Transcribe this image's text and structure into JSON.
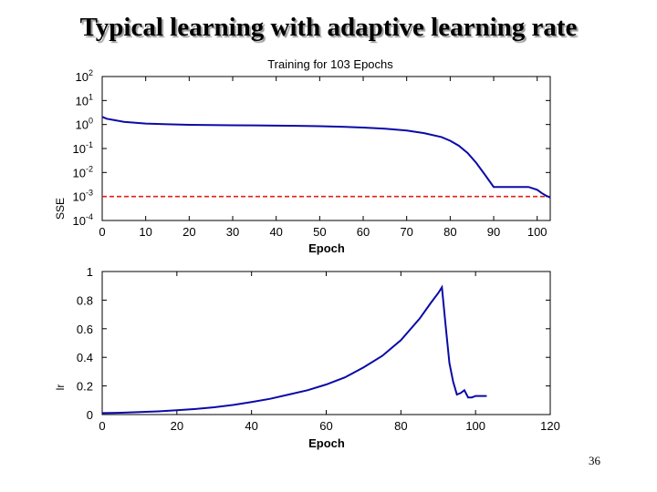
{
  "slide": {
    "title": "Typical learning with adaptive learning rate",
    "page_number": "36"
  },
  "chart_data": [
    {
      "type": "line",
      "title": "Training for 103 Epochs",
      "xlabel": "Epoch",
      "ylabel": "SSE",
      "yscale": "log",
      "xlim": [
        0,
        103
      ],
      "ylim": [
        0.0001,
        100
      ],
      "x_ticks": [
        0,
        10,
        20,
        30,
        40,
        50,
        60,
        70,
        80,
        90,
        100
      ],
      "y_ticks": [
        {
          "value": 100,
          "base": "10",
          "exp": "2"
        },
        {
          "value": 10,
          "base": "10",
          "exp": "1"
        },
        {
          "value": 1,
          "base": "10",
          "exp": "0"
        },
        {
          "value": 0.1,
          "base": "10",
          "exp": "-1"
        },
        {
          "value": 0.01,
          "base": "10",
          "exp": "-2"
        },
        {
          "value": 0.001,
          "base": "10",
          "exp": "-3"
        },
        {
          "value": 0.0001,
          "base": "10",
          "exp": "-4"
        }
      ],
      "series": [
        {
          "color": "#0a0aa8",
          "x": [
            0,
            1,
            3,
            5,
            10,
            15,
            20,
            25,
            30,
            35,
            40,
            45,
            50,
            55,
            60,
            65,
            70,
            74,
            78,
            80,
            82,
            84,
            86,
            88,
            90,
            92,
            94,
            96,
            98,
            100,
            101,
            102,
            103
          ],
          "y": [
            2.1,
            1.75,
            1.5,
            1.3,
            1.1,
            1.02,
            0.97,
            0.95,
            0.93,
            0.92,
            0.9,
            0.88,
            0.85,
            0.81,
            0.75,
            0.67,
            0.56,
            0.44,
            0.3,
            0.21,
            0.13,
            0.065,
            0.025,
            0.008,
            0.0025,
            0.0025,
            0.0025,
            0.0025,
            0.0025,
            0.0019,
            0.0014,
            0.0011,
            0.0009
          ]
        }
      ],
      "reference_lines": [
        {
          "y": 0.001,
          "color": "#e0201a",
          "style": "dashed"
        }
      ],
      "grid": false
    },
    {
      "type": "line",
      "xlabel": "Epoch",
      "ylabel": "lr",
      "xlim": [
        0,
        120
      ],
      "ylim": [
        0,
        1
      ],
      "x_ticks": [
        0,
        20,
        40,
        60,
        80,
        100,
        120
      ],
      "y_ticks": [
        {
          "value": 0,
          "label": "0"
        },
        {
          "value": 0.2,
          "label": "0.2"
        },
        {
          "value": 0.4,
          "label": "0.4"
        },
        {
          "value": 0.6,
          "label": "0.6"
        },
        {
          "value": 0.8,
          "label": "0.8"
        },
        {
          "value": 1,
          "label": "1"
        }
      ],
      "series": [
        {
          "color": "#0a0aa8",
          "x": [
            0,
            5,
            10,
            15,
            20,
            25,
            30,
            35,
            40,
            45,
            50,
            55,
            60,
            65,
            70,
            75,
            80,
            85,
            88,
            90,
            91,
            92,
            93,
            94,
            95,
            96,
            97,
            98,
            99,
            100,
            101,
            102,
            103
          ],
          "y": [
            0.01,
            0.013,
            0.017,
            0.022,
            0.03,
            0.039,
            0.051,
            0.067,
            0.087,
            0.11,
            0.14,
            0.17,
            0.21,
            0.26,
            0.33,
            0.41,
            0.52,
            0.67,
            0.78,
            0.85,
            0.89,
            0.62,
            0.36,
            0.23,
            0.14,
            0.15,
            0.17,
            0.12,
            0.12,
            0.13,
            0.13,
            0.13,
            0.13
          ]
        }
      ],
      "grid": false
    }
  ]
}
